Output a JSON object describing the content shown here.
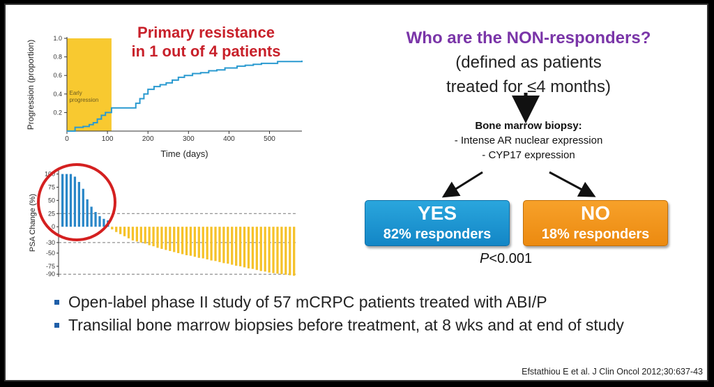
{
  "slide": {
    "resistance_title_line1": "Primary resistance",
    "resistance_title_line2": "in 1 out of 4 patients",
    "question_line1": "Who are the NON-responders?",
    "question_line2": "(defined as patients",
    "question_line3": "treated for ≤4 months)",
    "biopsy_title": "Bone marrow biopsy:",
    "biopsy_item1": "- Intense AR nuclear expression",
    "biopsy_item2": "- CYP17 expression",
    "yes_label": "YES",
    "yes_sub": "82% responders",
    "no_label": "NO",
    "no_sub": "18% responders",
    "p_italic": "P",
    "p_rest": "<0.001",
    "bullet1": "Open-label phase II study of 57 mCRPC patients treated with ABI/P",
    "bullet2": "Transilial bone marrow biopsies before treatment, at 8 wks and at end of study",
    "citation": "Efstathiou E et al. J Clin Oncol 2012;30:637-43",
    "colors": {
      "red": "#c8202a",
      "purple": "#7a35a8",
      "yes_blue": "#1a97d4",
      "no_orange": "#f0951a",
      "shade": "#f8c930",
      "line": "#2a9ad0",
      "bar_blue": "#2a87c8",
      "bar_yellow": "#f5c22a"
    }
  },
  "chart_data": [
    {
      "type": "line",
      "title": "",
      "xlabel": "Time (days)",
      "ylabel": "Progression (proportion)",
      "xlim": [
        0,
        580
      ],
      "ylim": [
        0,
        1.0
      ],
      "x_ticks": [
        0,
        100,
        200,
        300,
        400,
        500
      ],
      "y_ticks": [
        0.2,
        0.4,
        0.6,
        0.8,
        1.0
      ],
      "grid": false,
      "annotation": "Early progression",
      "shaded_region": [
        0,
        110
      ],
      "series": [
        {
          "step": true,
          "x": [
            0,
            20,
            40,
            55,
            65,
            75,
            85,
            95,
            110,
            170,
            180,
            190,
            200,
            215,
            230,
            245,
            260,
            275,
            290,
            310,
            330,
            350,
            370,
            390,
            420,
            440,
            460,
            480,
            520,
            580
          ],
          "y": [
            0,
            0.04,
            0.05,
            0.07,
            0.09,
            0.13,
            0.17,
            0.2,
            0.25,
            0.3,
            0.35,
            0.4,
            0.45,
            0.48,
            0.5,
            0.52,
            0.55,
            0.58,
            0.6,
            0.62,
            0.63,
            0.65,
            0.66,
            0.68,
            0.7,
            0.71,
            0.72,
            0.73,
            0.75,
            0.76
          ]
        }
      ]
    },
    {
      "type": "bar",
      "title": "",
      "xlabel": "",
      "ylabel": "PSA Change (%)",
      "ylim": [
        -95,
        110
      ],
      "y_ticks": [
        100,
        75,
        50,
        25,
        0,
        -30,
        -50,
        -75,
        -90
      ],
      "reference_lines": [
        25,
        -30,
        -90
      ],
      "values": [
        100,
        100,
        100,
        95,
        85,
        72,
        52,
        38,
        28,
        20,
        15,
        12,
        -5,
        -10,
        -14,
        -18,
        -22,
        -26,
        -28,
        -30,
        -32,
        -35,
        -37,
        -40,
        -42,
        -44,
        -46,
        -48,
        -50,
        -52,
        -54,
        -55,
        -57,
        -59,
        -60,
        -62,
        -64,
        -65,
        -67,
        -69,
        -70,
        -72,
        -74,
        -75,
        -77,
        -79,
        -80,
        -82,
        -84,
        -85,
        -87,
        -88,
        -89,
        -90,
        -91,
        -92,
        -93
      ]
    }
  ]
}
